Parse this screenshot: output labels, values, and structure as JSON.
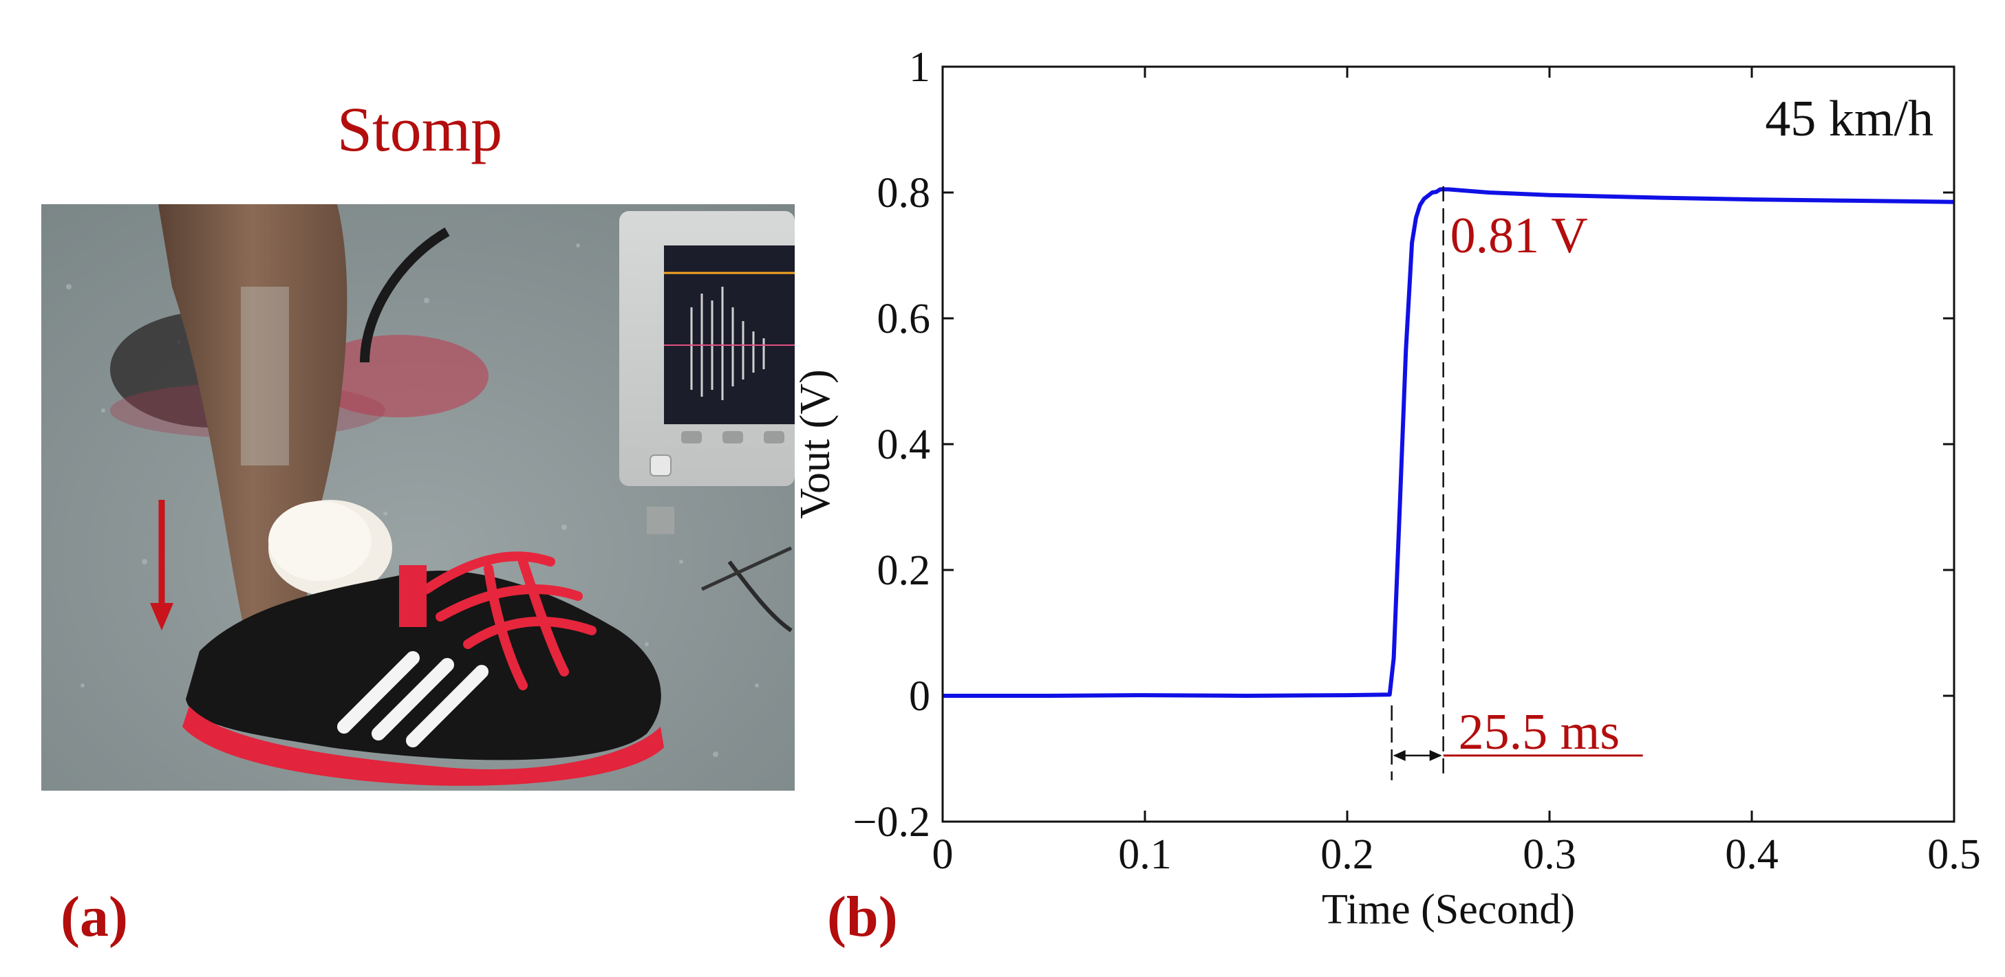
{
  "panel_a": {
    "title": "Stomp",
    "label": "(a)",
    "photo_icon": "foot-stomp-photo-icon",
    "arrow_color": "#c8141a"
  },
  "panel_b": {
    "label": "(b)"
  },
  "colors": {
    "line": "#1010e6",
    "annotation": "#b30d0d",
    "panel_label": "#b30d0d"
  },
  "chart_data": {
    "type": "line",
    "title": "",
    "xlabel": "Time (Second)",
    "ylabel": "Vout (V)",
    "xlim": [
      0,
      0.5
    ],
    "ylim": [
      -0.2,
      1
    ],
    "xticks": [
      0,
      0.1,
      0.2,
      0.3,
      0.4,
      0.5
    ],
    "xtick_labels": [
      "0",
      "0.1",
      "0.2",
      "0.3",
      "0.4",
      "0.5"
    ],
    "yticks": [
      -0.2,
      0,
      0.2,
      0.4,
      0.6,
      0.8,
      1
    ],
    "ytick_labels": [
      "−0.2",
      "0",
      "0.2",
      "0.4",
      "0.6",
      "0.8",
      "1"
    ],
    "grid": false,
    "series": [
      {
        "x": [
          0,
          0.05,
          0.1,
          0.15,
          0.2,
          0.221,
          0.223,
          0.226,
          0.229,
          0.232,
          0.234,
          0.235,
          0.236,
          0.238,
          0.24,
          0.242,
          0.244,
          0.246,
          0.25,
          0.27,
          0.3,
          0.35,
          0.4,
          0.45,
          0.5
        ],
        "y": [
          0,
          0,
          0.001,
          0,
          0.001,
          0.002,
          0.06,
          0.3,
          0.55,
          0.72,
          0.76,
          0.77,
          0.78,
          0.79,
          0.795,
          0.8,
          0.801,
          0.805,
          0.805,
          0.8,
          0.796,
          0.792,
          0.789,
          0.787,
          0.785
        ]
      }
    ],
    "annotations": {
      "speed": "45 km/h",
      "peak_voltage": "0.81 V",
      "rise_time": "25.5 ms",
      "rise_start_x": 0.222,
      "rise_end_x": 0.2475,
      "arrow_y": -0.095
    }
  }
}
